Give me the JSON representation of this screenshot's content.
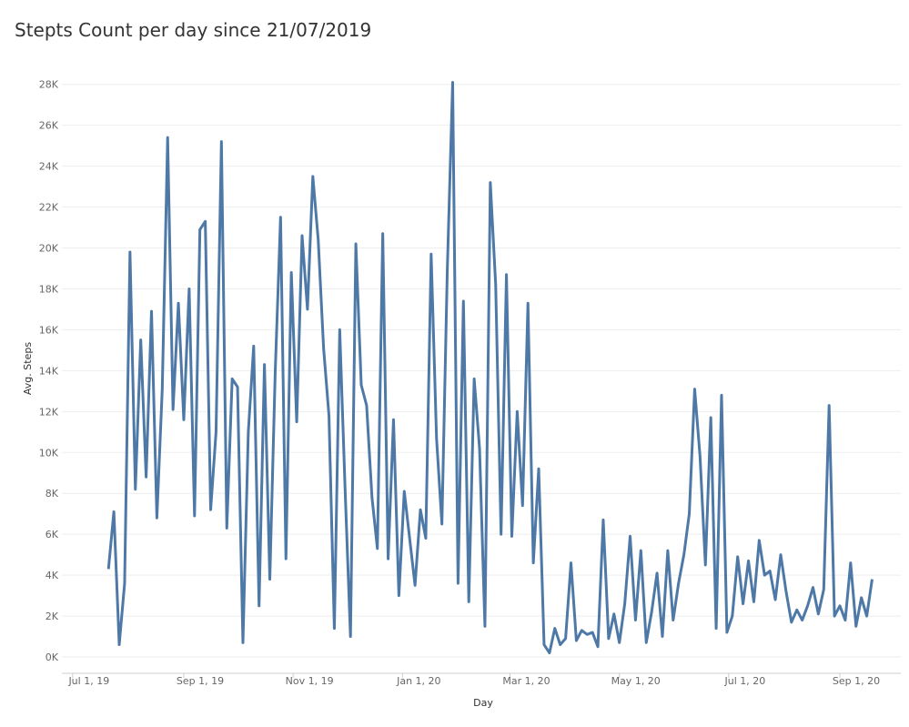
{
  "chart_data": {
    "type": "line",
    "title": "Stepts Count per day since 21/07/2019",
    "x_label": "Day",
    "y_label": "Avg. Steps",
    "grid": true,
    "xlim": [
      "2019-06-25",
      "2020-10-05"
    ],
    "xticks": [
      {
        "value": "2019-07-01",
        "label": "Jul 1, 19"
      },
      {
        "value": "2019-09-01",
        "label": "Sep 1, 19"
      },
      {
        "value": "2019-11-01",
        "label": "Nov 1, 19"
      },
      {
        "value": "2020-01-01",
        "label": "Jan 1, 20"
      },
      {
        "value": "2020-03-01",
        "label": "Mar 1, 20"
      },
      {
        "value": "2020-05-01",
        "label": "May 1, 20"
      },
      {
        "value": "2020-07-01",
        "label": "Jul 1, 20"
      },
      {
        "value": "2020-09-01",
        "label": "Sep 1, 20"
      }
    ],
    "ylim": [
      -800,
      29900
    ],
    "yticks": [
      {
        "value": 0,
        "label": "0K"
      },
      {
        "value": 2000,
        "label": "2K"
      },
      {
        "value": 4000,
        "label": "4K"
      },
      {
        "value": 6000,
        "label": "6K"
      },
      {
        "value": 8000,
        "label": "8K"
      },
      {
        "value": 10000,
        "label": "10K"
      },
      {
        "value": 12000,
        "label": "12K"
      },
      {
        "value": 14000,
        "label": "14K"
      },
      {
        "value": 16000,
        "label": "16K"
      },
      {
        "value": 18000,
        "label": "18K"
      },
      {
        "value": 20000,
        "label": "20K"
      },
      {
        "value": 22000,
        "label": "22K"
      },
      {
        "value": 24000,
        "label": "24K"
      },
      {
        "value": 26000,
        "label": "26K"
      },
      {
        "value": 28000,
        "label": "28K"
      }
    ],
    "x": [
      "2019-07-21",
      "2019-07-24",
      "2019-07-27",
      "2019-07-30",
      "2019-08-02",
      "2019-08-05",
      "2019-08-08",
      "2019-08-11",
      "2019-08-14",
      "2019-08-17",
      "2019-08-20",
      "2019-08-23",
      "2019-08-26",
      "2019-08-29",
      "2019-09-01",
      "2019-09-04",
      "2019-09-07",
      "2019-09-10",
      "2019-09-13",
      "2019-09-16",
      "2019-09-19",
      "2019-09-22",
      "2019-09-25",
      "2019-09-28",
      "2019-10-01",
      "2019-10-04",
      "2019-10-07",
      "2019-10-10",
      "2019-10-13",
      "2019-10-16",
      "2019-10-19",
      "2019-10-22",
      "2019-10-25",
      "2019-10-28",
      "2019-10-31",
      "2019-11-03",
      "2019-11-06",
      "2019-11-09",
      "2019-11-12",
      "2019-11-15",
      "2019-11-18",
      "2019-11-21",
      "2019-11-24",
      "2019-11-27",
      "2019-11-30",
      "2019-12-03",
      "2019-12-06",
      "2019-12-09",
      "2019-12-12",
      "2019-12-15",
      "2019-12-18",
      "2019-12-21",
      "2019-12-24",
      "2019-12-27",
      "2019-12-30",
      "2020-01-02",
      "2020-01-05",
      "2020-01-08",
      "2020-01-11",
      "2020-01-14",
      "2020-01-17",
      "2020-01-20",
      "2020-01-23",
      "2020-01-26",
      "2020-01-29",
      "2020-02-01",
      "2020-02-04",
      "2020-02-07",
      "2020-02-10",
      "2020-02-13",
      "2020-02-16",
      "2020-02-19",
      "2020-02-22",
      "2020-02-25",
      "2020-02-28",
      "2020-03-02",
      "2020-03-05",
      "2020-03-08",
      "2020-03-11",
      "2020-03-14",
      "2020-03-17",
      "2020-03-20",
      "2020-03-23",
      "2020-03-26",
      "2020-03-29",
      "2020-04-01",
      "2020-04-04",
      "2020-04-07",
      "2020-04-10",
      "2020-04-13",
      "2020-04-16",
      "2020-04-19",
      "2020-04-22",
      "2020-04-25",
      "2020-04-28",
      "2020-05-01",
      "2020-05-04",
      "2020-05-07",
      "2020-05-10",
      "2020-05-13",
      "2020-05-16",
      "2020-05-19",
      "2020-05-22",
      "2020-05-25",
      "2020-05-28",
      "2020-05-31",
      "2020-06-03",
      "2020-06-06",
      "2020-06-09",
      "2020-06-12",
      "2020-06-15",
      "2020-06-18",
      "2020-06-21",
      "2020-06-24",
      "2020-06-27",
      "2020-06-30",
      "2020-07-03",
      "2020-07-06",
      "2020-07-09",
      "2020-07-12",
      "2020-07-15",
      "2020-07-18",
      "2020-07-21",
      "2020-07-24",
      "2020-07-27",
      "2020-07-30",
      "2020-08-02",
      "2020-08-05",
      "2020-08-08",
      "2020-08-11",
      "2020-08-14",
      "2020-08-17",
      "2020-08-20",
      "2020-08-23",
      "2020-08-26",
      "2020-08-29",
      "2020-09-01",
      "2020-09-04",
      "2020-09-07",
      "2020-09-10",
      "2020-09-13",
      "2020-09-16",
      "2020-09-19"
    ],
    "series": [
      {
        "name": "Avg. Steps",
        "color": "#4e79a7",
        "values": [
          4300,
          7100,
          600,
          3600,
          19800,
          8200,
          15500,
          8800,
          16900,
          6800,
          13100,
          25400,
          12100,
          17300,
          11600,
          18000,
          6900,
          20900,
          21300,
          7200,
          11000,
          25200,
          6300,
          13600,
          13200,
          700,
          11000,
          15200,
          2500,
          14300,
          3800,
          13900,
          21500,
          4800,
          18800,
          11500,
          20600,
          17000,
          23500,
          20400,
          15100,
          11800,
          1400,
          16000,
          8200,
          1000,
          20200,
          13300,
          12300,
          7800,
          5300,
          20700,
          4800,
          11600,
          3000,
          8100,
          5800,
          3500,
          7200,
          5800,
          19700,
          10700,
          6500,
          18900,
          28100,
          3600,
          17400,
          2700,
          13600,
          10200,
          1500,
          23200,
          18200,
          6000,
          18700,
          5900,
          12000,
          7400,
          17300,
          4600,
          9200,
          600,
          200,
          1400,
          600,
          900,
          4600,
          800,
          1300,
          1100,
          1200,
          500,
          6700,
          900,
          2100,
          700,
          2600,
          5900,
          1800,
          5200,
          700,
          2200,
          4100,
          1000,
          5200,
          1800,
          3600,
          5000,
          7000,
          13100,
          9800,
          4500,
          11700,
          1400,
          12800,
          1200,
          2000,
          4900,
          2600,
          4700,
          2700,
          5700,
          4000,
          4200,
          2800,
          5000,
          3200,
          1700,
          2300,
          1800,
          2500,
          3400,
          2100,
          3300,
          12300,
          2000,
          2500,
          1800,
          4600,
          1500,
          2900,
          2000,
          3800
        ]
      }
    ]
  }
}
